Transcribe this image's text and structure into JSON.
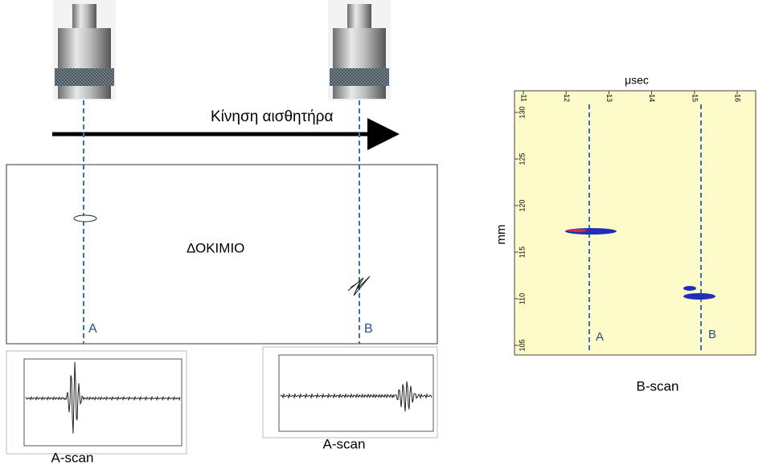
{
  "probe_motion": "Κίνηση αισθητήρα",
  "specimen": {
    "label": "ΔΟΚΙΜΙΟ",
    "marker_a": "A",
    "marker_b": "B"
  },
  "a_scans": [
    {
      "caption": "A-scan"
    },
    {
      "caption": "A-scan"
    }
  ],
  "b_scan": {
    "x_label": "μsec",
    "y_label": "mm",
    "x_ticks": [
      11,
      12,
      13,
      14,
      15,
      16
    ],
    "y_ticks": [
      130,
      125,
      120,
      115,
      110,
      105
    ],
    "marker_a": "A",
    "marker_b": "B",
    "caption": "B-scan"
  }
}
